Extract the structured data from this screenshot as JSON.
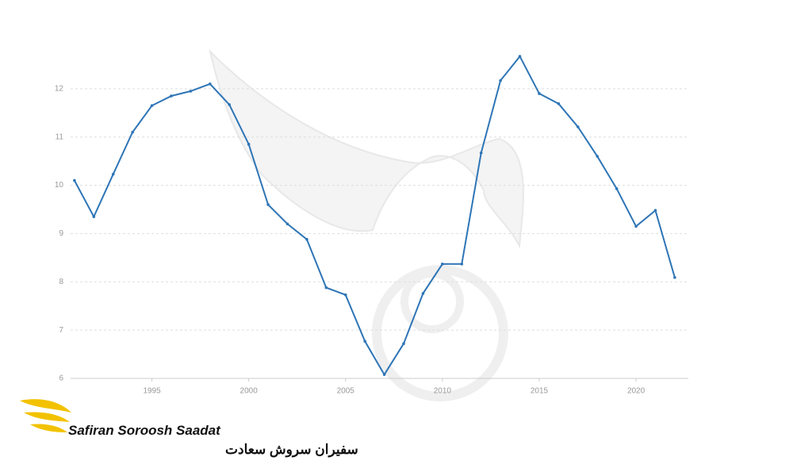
{
  "chart_data": {
    "type": "line",
    "x": [
      1991,
      1992,
      1993,
      1994,
      1995,
      1996,
      1997,
      1998,
      1999,
      2000,
      2001,
      2002,
      2003,
      2004,
      2005,
      2006,
      2007,
      2008,
      2009,
      2010,
      2011,
      2012,
      2013,
      2014,
      2015,
      2016,
      2017,
      2018,
      2019,
      2020,
      2021,
      2022
    ],
    "values": [
      10.1,
      9.35,
      10.23,
      11.1,
      11.65,
      11.85,
      11.95,
      12.1,
      11.67,
      10.85,
      9.6,
      9.2,
      8.88,
      7.88,
      7.73,
      6.77,
      6.08,
      6.72,
      7.76,
      8.37,
      8.37,
      10.67,
      12.17,
      12.67,
      11.9,
      11.69,
      11.21,
      10.6,
      9.93,
      9.15,
      9.48,
      8.09
    ],
    "color": "#2e75b6",
    "xlim": [
      1990.8,
      2022.7
    ],
    "xticks": [
      1995,
      2000,
      2005,
      2010,
      2015,
      2020
    ],
    "ylim": [
      6,
      13
    ],
    "yticks": [
      6,
      7,
      8,
      9,
      10,
      11,
      12
    ],
    "grid": true
  },
  "logo": {
    "brand": "Safiran Soroosh Saadat",
    "brand_fa": "سفیران سروش سعادت"
  }
}
